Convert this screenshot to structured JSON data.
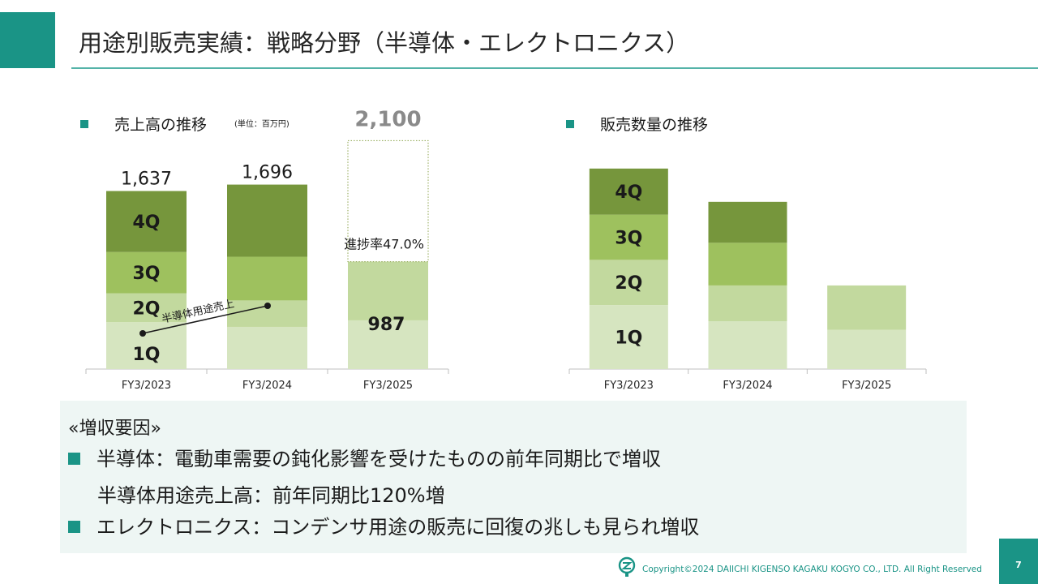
{
  "title": "用途別販売実績：戦略分野（半導体・エレクトロニクス）",
  "sales": {
    "heading": "売上高の推移",
    "unit": "(単位：百万円)",
    "chart_data": {
      "type": "bar",
      "stacked": true,
      "categories": [
        "FY3/2023",
        "FY3/2024",
        "FY3/2025"
      ],
      "series": [
        {
          "name": "1Q",
          "values": [
            431,
            388,
            448
          ]
        },
        {
          "name": "2Q",
          "values": [
            266,
            243,
            539
          ]
        },
        {
          "name": "3Q",
          "values": [
            379,
            402,
            null
          ]
        },
        {
          "name": "4Q",
          "values": [
            561,
            663,
            null
          ]
        }
      ],
      "series_labels": [
        "1Q",
        "2Q",
        "3Q",
        "4Q"
      ],
      "totals": [
        "1,637",
        "1,696",
        ""
      ],
      "forecast": {
        "category": "FY3/2025",
        "value": 2100,
        "label": "2,100"
      },
      "actual_label": "987",
      "progress_label": "進捗率47.0%",
      "annotation": "半導体用途売上",
      "ylim": [
        0,
        2200
      ]
    }
  },
  "volume": {
    "heading": "販売数量の推移",
    "chart_data": {
      "type": "bar",
      "stacked": true,
      "categories": [
        "FY3/2023",
        "FY3/2024",
        "FY3/2025"
      ],
      "series": [
        {
          "name": "1Q",
          "values": [
            75,
            56,
            46
          ]
        },
        {
          "name": "2Q",
          "values": [
            53,
            42,
            52
          ]
        },
        {
          "name": "3Q",
          "values": [
            53,
            50,
            null
          ]
        },
        {
          "name": "4Q",
          "values": [
            54,
            48,
            null
          ]
        }
      ],
      "series_labels": [
        "1Q",
        "2Q",
        "3Q",
        "4Q"
      ],
      "ylim": [
        0,
        240
      ]
    }
  },
  "colors": {
    "q1": "#d6e5c0",
    "q2": "#c2d99e",
    "q3": "#9ec15e",
    "q4": "#76963c",
    "accent": "#1a9486",
    "forecast": "#8a8a8a"
  },
  "factors": {
    "heading": "«増収要因»",
    "items": [
      "半導体：電動車需要の鈍化影響を受けたものの前年同期比で増収",
      "エレクトロニクス：コンデンサ用途の販売に回復の兆しも見られ増収"
    ],
    "sub": "半導体用途売上高：前年同期比120%増"
  },
  "footer": {
    "copyright": "Copyright©2024 DAIICHI KIGENSO KAGAKU KOGYO CO., LTD. All Right Reserved",
    "page": "7"
  }
}
